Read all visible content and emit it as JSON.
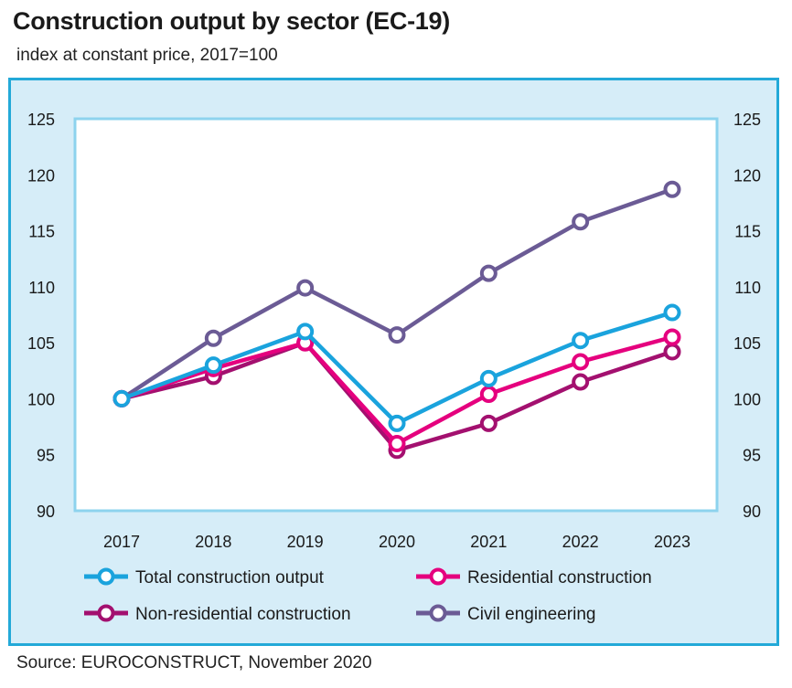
{
  "title": "Construction output by sector (EC-19)",
  "subtitle": "index at constant price, 2017=100",
  "source": "Source: EUROCONSTRUCT, November 2020",
  "chart_data": {
    "type": "line",
    "x": [
      "2017",
      "2018",
      "2019",
      "2020",
      "2021",
      "2022",
      "2023"
    ],
    "ylim": [
      90,
      125
    ],
    "yticks": [
      90,
      95,
      100,
      105,
      110,
      115,
      120,
      125
    ],
    "right_axis": true,
    "grid": false,
    "legend_position": "bottom",
    "series": [
      {
        "name": "Total construction output",
        "color": "#1aa3dd",
        "values": [
          100,
          103.0,
          106.0,
          97.8,
          101.8,
          105.2,
          107.7
        ]
      },
      {
        "name": "Residential construction",
        "color": "#e5007e",
        "values": [
          100,
          102.7,
          105.0,
          96.0,
          100.4,
          103.3,
          105.5
        ]
      },
      {
        "name": "Non-residential construction",
        "color": "#a3106f",
        "values": [
          100,
          102.0,
          105.0,
          95.4,
          97.8,
          101.5,
          104.2
        ]
      },
      {
        "name": "Civil engineering",
        "color": "#6b5b95",
        "values": [
          100,
          105.4,
          109.9,
          105.7,
          111.2,
          115.8,
          118.7
        ]
      }
    ]
  }
}
